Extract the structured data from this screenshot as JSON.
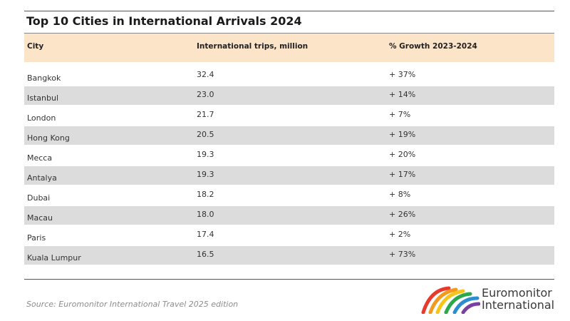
{
  "title": "Top 10 Cities in International Arrivals 2024",
  "table": {
    "headers": [
      "City",
      "International trips, million",
      "% Growth 2023-2024"
    ],
    "rows": [
      {
        "city": "Bangkok",
        "trips": "32.4",
        "growth": "+ 37%"
      },
      {
        "city": "Istanbul",
        "trips": "23.0",
        "growth": "+ 14%"
      },
      {
        "city": "London",
        "trips": "21.7",
        "growth": "+ 7%"
      },
      {
        "city": "Hong Kong",
        "trips": "20.5",
        "growth": "+ 19%"
      },
      {
        "city": "Mecca",
        "trips": "19.3",
        "growth": "+ 20%"
      },
      {
        "city": "Antalya",
        "trips": "19.3",
        "growth": "+ 17%"
      },
      {
        "city": "Dubai",
        "trips": "18.2",
        "growth": "+ 8%"
      },
      {
        "city": "Macau",
        "trips": "18.0",
        "growth": "+ 26%"
      },
      {
        "city": "Paris",
        "trips": "17.4",
        "growth": "+ 2%"
      },
      {
        "city": "Kuala Lumpur",
        "trips": "16.5",
        "growth": "+ 73%"
      }
    ]
  },
  "source": "Source: Euromonitor International Travel 2025 edition",
  "logo": {
    "line1": "Euromonitor",
    "line2": "International",
    "colors": [
      "#e63a2e",
      "#f39a1e",
      "#f6c51a",
      "#2aa84a",
      "#2b8ccf",
      "#7b3fa0"
    ]
  },
  "colors": {
    "header_bg": "#fce4c8",
    "alt_row_bg": "#dcdcdc"
  }
}
